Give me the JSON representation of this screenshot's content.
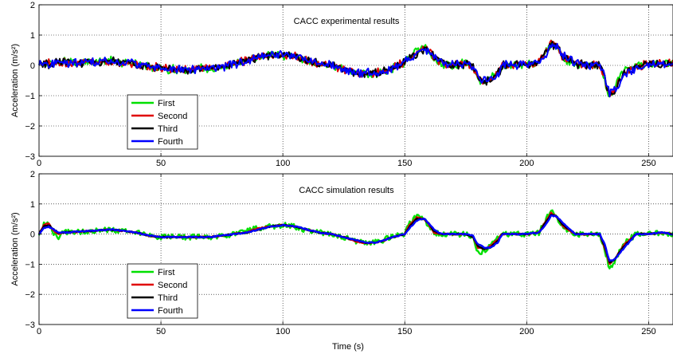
{
  "figure": {
    "xlabel": "Time (s)"
  },
  "chart_data": [
    {
      "type": "line",
      "title": "CACC experimental results",
      "xlabel": "",
      "ylabel": "Acceleration (m/s²)",
      "xlim": [
        0,
        260
      ],
      "ylim": [
        -3,
        2
      ],
      "xticks": [
        0,
        50,
        100,
        150,
        200,
        250
      ],
      "yticks": [
        -3,
        -2,
        -1,
        0,
        1,
        2
      ],
      "grid": true,
      "legend": "lower-left",
      "noisy": true,
      "x": [
        0,
        5,
        10,
        20,
        30,
        40,
        45,
        50,
        60,
        70,
        75,
        80,
        85,
        90,
        95,
        100,
        105,
        110,
        115,
        120,
        125,
        130,
        135,
        140,
        145,
        150,
        155,
        158,
        160,
        162,
        165,
        170,
        175,
        178,
        180,
        183,
        185,
        188,
        190,
        200,
        205,
        208,
        210,
        212,
        215,
        220,
        225,
        230,
        232,
        234,
        236,
        240,
        245,
        250,
        255,
        260
      ],
      "series": [
        {
          "name": "First",
          "color": "#00e000",
          "values": [
            0.1,
            0.05,
            0.1,
            0.1,
            0.15,
            0.05,
            -0.05,
            -0.1,
            -0.15,
            -0.1,
            -0.05,
            0.05,
            0.15,
            0.25,
            0.35,
            0.35,
            0.3,
            0.15,
            0.05,
            0.0,
            -0.1,
            -0.25,
            -0.25,
            -0.25,
            -0.1,
            0.1,
            0.5,
            0.6,
            0.45,
            0.2,
            0.05,
            0.0,
            0.05,
            -0.1,
            -0.5,
            -0.55,
            -0.4,
            -0.2,
            0.0,
            0.05,
            0.1,
            0.5,
            0.75,
            0.6,
            0.2,
            0.05,
            0.0,
            0.0,
            -0.5,
            -1.05,
            -0.7,
            -0.2,
            -0.05,
            0.05,
            0.05,
            0.05
          ]
        },
        {
          "name": "Second",
          "color": "#e00000",
          "values": [
            0.1,
            0.05,
            0.1,
            0.1,
            0.15,
            0.05,
            -0.05,
            -0.1,
            -0.15,
            -0.1,
            -0.05,
            0.05,
            0.15,
            0.25,
            0.35,
            0.35,
            0.3,
            0.15,
            0.05,
            0.0,
            -0.1,
            -0.25,
            -0.25,
            -0.25,
            -0.1,
            0.1,
            0.45,
            0.6,
            0.5,
            0.25,
            0.05,
            0.0,
            0.05,
            -0.05,
            -0.45,
            -0.55,
            -0.45,
            -0.25,
            0.0,
            0.05,
            0.1,
            0.45,
            0.75,
            0.65,
            0.25,
            0.05,
            0.0,
            0.0,
            -0.45,
            -1.0,
            -0.75,
            -0.25,
            -0.05,
            0.05,
            0.05,
            0.05
          ]
        },
        {
          "name": "Third",
          "color": "#000000",
          "values": [
            0.1,
            0.05,
            0.1,
            0.1,
            0.15,
            0.05,
            -0.05,
            -0.1,
            -0.15,
            -0.1,
            -0.05,
            0.05,
            0.15,
            0.25,
            0.35,
            0.35,
            0.3,
            0.15,
            0.05,
            0.0,
            -0.1,
            -0.25,
            -0.25,
            -0.25,
            -0.1,
            0.1,
            0.4,
            0.55,
            0.5,
            0.3,
            0.1,
            0.0,
            0.05,
            -0.05,
            -0.4,
            -0.55,
            -0.5,
            -0.3,
            0.0,
            0.05,
            0.1,
            0.4,
            0.7,
            0.65,
            0.3,
            0.05,
            0.0,
            0.0,
            -0.4,
            -0.95,
            -0.8,
            -0.3,
            -0.05,
            0.05,
            0.05,
            0.05
          ]
        },
        {
          "name": "Fourth",
          "color": "#0000ff",
          "values": [
            0.1,
            0.05,
            0.1,
            0.1,
            0.15,
            0.05,
            -0.05,
            -0.1,
            -0.15,
            -0.1,
            -0.05,
            0.05,
            0.15,
            0.25,
            0.35,
            0.35,
            0.3,
            0.15,
            0.05,
            0.0,
            -0.1,
            -0.25,
            -0.25,
            -0.25,
            -0.1,
            0.1,
            0.35,
            0.55,
            0.5,
            0.35,
            0.1,
            0.0,
            0.05,
            -0.05,
            -0.35,
            -0.5,
            -0.5,
            -0.35,
            0.0,
            0.05,
            0.1,
            0.35,
            0.65,
            0.65,
            0.35,
            0.05,
            0.0,
            0.0,
            -0.35,
            -0.9,
            -0.8,
            -0.35,
            -0.05,
            0.05,
            0.05,
            0.05
          ]
        }
      ]
    },
    {
      "type": "line",
      "title": "CACC simulation results",
      "xlabel": "Time (s)",
      "ylabel": "Acceleration (m/s²)",
      "xlim": [
        0,
        260
      ],
      "ylim": [
        -3,
        2
      ],
      "xticks": [
        0,
        50,
        100,
        150,
        200,
        250
      ],
      "yticks": [
        -3,
        -2,
        -1,
        0,
        1,
        2
      ],
      "grid": true,
      "legend": "lower-left",
      "noisy": false,
      "x": [
        0,
        2,
        4,
        6,
        8,
        10,
        20,
        30,
        40,
        45,
        50,
        60,
        70,
        75,
        80,
        85,
        90,
        95,
        100,
        105,
        110,
        115,
        120,
        125,
        130,
        135,
        140,
        145,
        150,
        152,
        155,
        158,
        160,
        162,
        165,
        170,
        175,
        178,
        180,
        183,
        185,
        188,
        190,
        200,
        205,
        208,
        210,
        212,
        215,
        220,
        225,
        230,
        232,
        234,
        236,
        240,
        245,
        250,
        255,
        260
      ],
      "series": [
        {
          "name": "First",
          "color": "#00e000",
          "values": [
            0.0,
            0.35,
            0.3,
            0.05,
            -0.1,
            0.05,
            0.1,
            0.15,
            0.05,
            -0.05,
            -0.1,
            -0.1,
            -0.1,
            -0.05,
            0.0,
            0.1,
            0.2,
            0.25,
            0.3,
            0.25,
            0.1,
            0.05,
            0.0,
            -0.1,
            -0.25,
            -0.3,
            -0.25,
            -0.05,
            0.0,
            0.35,
            0.6,
            0.5,
            0.25,
            0.05,
            0.0,
            0.0,
            0.0,
            -0.15,
            -0.6,
            -0.55,
            -0.35,
            -0.15,
            0.0,
            0.0,
            0.05,
            0.5,
            0.8,
            0.6,
            0.2,
            0.0,
            0.0,
            0.0,
            -0.5,
            -1.2,
            -0.9,
            -0.3,
            0.0,
            0.0,
            0.05,
            0.0
          ]
        },
        {
          "name": "Second",
          "color": "#e00000",
          "values": [
            0.0,
            0.3,
            0.35,
            0.1,
            0.0,
            0.05,
            0.1,
            0.15,
            0.05,
            -0.05,
            -0.1,
            -0.1,
            -0.1,
            -0.05,
            0.0,
            0.05,
            0.2,
            0.25,
            0.3,
            0.25,
            0.15,
            0.05,
            0.0,
            -0.1,
            -0.25,
            -0.3,
            -0.25,
            -0.1,
            0.0,
            0.3,
            0.55,
            0.5,
            0.3,
            0.05,
            0.0,
            0.0,
            0.0,
            -0.1,
            -0.45,
            -0.5,
            -0.4,
            -0.2,
            0.0,
            0.0,
            0.05,
            0.45,
            0.7,
            0.6,
            0.25,
            0.0,
            0.0,
            0.0,
            -0.45,
            -1.0,
            -0.85,
            -0.35,
            0.0,
            0.0,
            0.05,
            0.0
          ]
        },
        {
          "name": "Third",
          "color": "#000000",
          "values": [
            0.0,
            0.25,
            0.3,
            0.15,
            0.05,
            0.05,
            0.1,
            0.15,
            0.05,
            -0.05,
            -0.1,
            -0.1,
            -0.1,
            -0.05,
            0.0,
            0.05,
            0.15,
            0.25,
            0.3,
            0.25,
            0.15,
            0.05,
            0.0,
            -0.1,
            -0.2,
            -0.3,
            -0.25,
            -0.1,
            0.0,
            0.25,
            0.5,
            0.5,
            0.35,
            0.1,
            0.0,
            0.0,
            0.0,
            -0.1,
            -0.4,
            -0.5,
            -0.45,
            -0.25,
            0.0,
            0.0,
            0.05,
            0.4,
            0.65,
            0.6,
            0.3,
            0.0,
            0.0,
            0.0,
            -0.4,
            -0.95,
            -0.85,
            -0.4,
            0.0,
            0.0,
            0.05,
            0.0
          ]
        },
        {
          "name": "Fourth",
          "color": "#0000ff",
          "values": [
            0.0,
            0.2,
            0.25,
            0.15,
            0.05,
            0.05,
            0.1,
            0.15,
            0.05,
            -0.05,
            -0.1,
            -0.1,
            -0.1,
            -0.05,
            0.0,
            0.05,
            0.15,
            0.25,
            0.3,
            0.25,
            0.15,
            0.05,
            0.0,
            -0.1,
            -0.2,
            -0.3,
            -0.25,
            -0.1,
            0.0,
            0.2,
            0.45,
            0.5,
            0.35,
            0.15,
            0.0,
            0.0,
            0.0,
            -0.05,
            -0.35,
            -0.45,
            -0.45,
            -0.3,
            0.0,
            0.0,
            0.05,
            0.35,
            0.6,
            0.6,
            0.35,
            0.0,
            0.0,
            0.0,
            -0.35,
            -0.9,
            -0.85,
            -0.45,
            0.0,
            0.0,
            0.05,
            0.0
          ]
        }
      ]
    }
  ]
}
